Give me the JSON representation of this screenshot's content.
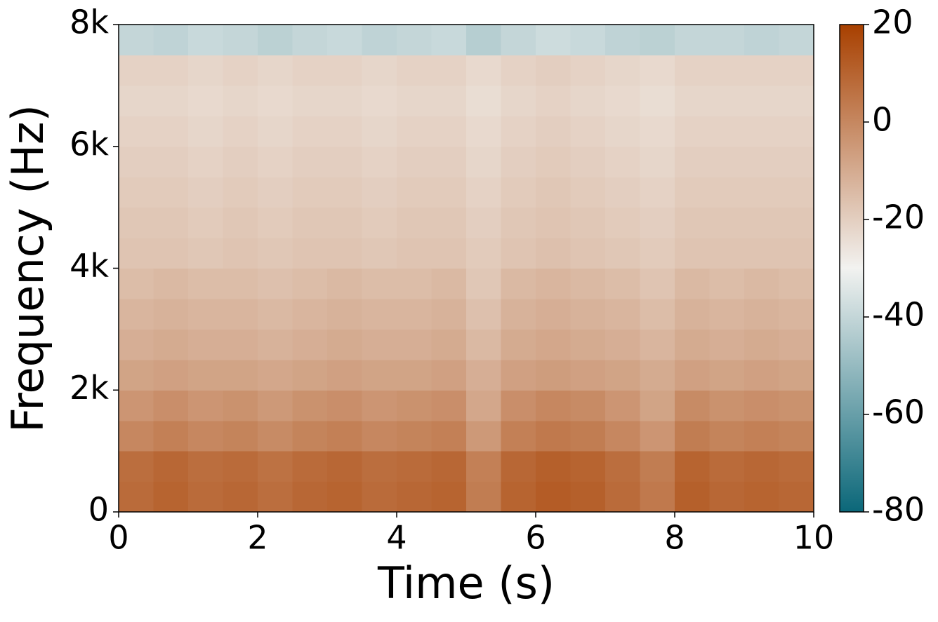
{
  "chart_data": {
    "type": "spectrogram",
    "xlabel": "Time (s)",
    "ylabel": "Frequency (Hz)",
    "xlim": [
      0,
      10
    ],
    "xticks": [
      0,
      2,
      4,
      6,
      8,
      10
    ],
    "ylim": [
      0,
      8000
    ],
    "yticks": [
      0,
      {
        "value": 2000,
        "label": "2k"
      },
      {
        "value": 4000,
        "label": "4k"
      },
      {
        "value": 6000,
        "label": "6k"
      },
      {
        "value": 8000,
        "label": "8k"
      }
    ],
    "zlim": [
      -80,
      20
    ],
    "zticks": [
      -80,
      -60,
      -40,
      -20,
      0,
      20
    ],
    "colormap": [
      "#0b6779",
      "#f2f2f0",
      "#a84000"
    ],
    "z": [
      [
        8,
        10,
        8,
        9,
        7,
        9,
        10,
        8,
        9,
        10,
        3,
        10,
        12,
        11,
        8,
        4,
        11,
        9,
        10,
        9
      ],
      [
        7,
        9,
        7,
        8,
        6,
        8,
        9,
        7,
        8,
        9,
        2,
        9,
        11,
        10,
        7,
        3,
        10,
        8,
        9,
        8
      ],
      [
        0,
        2,
        0,
        1,
        -1,
        1,
        2,
        0,
        1,
        2,
        -5,
        2,
        4,
        3,
        0,
        -4,
        3,
        1,
        2,
        1
      ],
      [
        -4,
        -2,
        -4,
        -3,
        -5,
        -3,
        -2,
        -4,
        -3,
        -2,
        -9,
        -2,
        0,
        -1,
        -4,
        -8,
        -1,
        -3,
        -2,
        -3
      ],
      [
        -8,
        -7,
        -8,
        -8,
        -9,
        -8,
        -7,
        -8,
        -8,
        -7,
        -11,
        -7,
        -6,
        -7,
        -8,
        -10,
        -7,
        -8,
        -7,
        -8
      ],
      [
        -11,
        -10,
        -11,
        -11,
        -12,
        -11,
        -10,
        -11,
        -11,
        -10,
        -14,
        -10,
        -9,
        -10,
        -11,
        -13,
        -10,
        -11,
        -10,
        -11
      ],
      [
        -13,
        -12,
        -13,
        -13,
        -14,
        -13,
        -12,
        -13,
        -13,
        -12,
        -16,
        -12,
        -11,
        -12,
        -13,
        -15,
        -12,
        -13,
        -12,
        -13
      ],
      [
        -15,
        -14,
        -15,
        -15,
        -16,
        -15,
        -14,
        -15,
        -15,
        -14,
        -18,
        -14,
        -13,
        -14,
        -15,
        -17,
        -14,
        -15,
        -14,
        -15
      ],
      [
        -17,
        -17,
        -18,
        -17,
        -18,
        -17,
        -17,
        -18,
        -17,
        -17,
        -19,
        -17,
        -16,
        -17,
        -18,
        -19,
        -17,
        -17,
        -17,
        -17
      ],
      [
        -18,
        -18,
        -19,
        -18,
        -19,
        -18,
        -18,
        -19,
        -18,
        -18,
        -20,
        -18,
        -17,
        -18,
        -19,
        -20,
        -18,
        -18,
        -18,
        -18
      ],
      [
        -19,
        -19,
        -20,
        -19,
        -20,
        -19,
        -19,
        -20,
        -19,
        -19,
        -21,
        -19,
        -18,
        -19,
        -20,
        -21,
        -19,
        -19,
        -19,
        -19
      ],
      [
        -20,
        -20,
        -21,
        -20,
        -21,
        -20,
        -20,
        -21,
        -20,
        -20,
        -22,
        -20,
        -19,
        -20,
        -21,
        -22,
        -20,
        -20,
        -20,
        -20
      ],
      [
        -21,
        -21,
        -22,
        -21,
        -22,
        -21,
        -21,
        -22,
        -21,
        -21,
        -23,
        -21,
        -20,
        -21,
        -22,
        -23,
        -21,
        -21,
        -21,
        -21
      ],
      [
        -22,
        -22,
        -23,
        -22,
        -23,
        -22,
        -22,
        -23,
        -22,
        -22,
        -24,
        -22,
        -21,
        -22,
        -23,
        -24,
        -22,
        -22,
        -22,
        -22
      ],
      [
        -21,
        -21,
        -22,
        -21,
        -22,
        -21,
        -21,
        -22,
        -21,
        -21,
        -23,
        -21,
        -20,
        -21,
        -22,
        -23,
        -21,
        -21,
        -21,
        -21
      ],
      [
        -40,
        -41,
        -39,
        -40,
        -42,
        -40,
        -39,
        -41,
        -40,
        -39,
        -43,
        -40,
        -38,
        -39,
        -41,
        -42,
        -40,
        -40,
        -41,
        -40
      ]
    ]
  }
}
